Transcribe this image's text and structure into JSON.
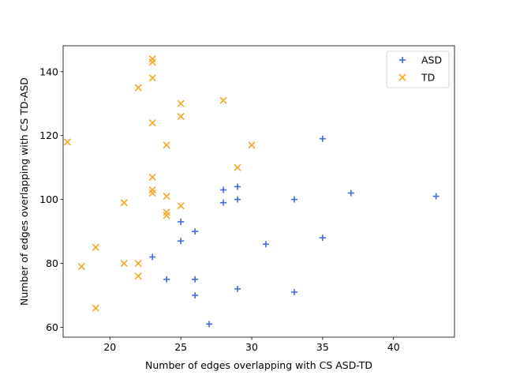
{
  "chart_data": {
    "type": "scatter",
    "xlabel": "Number of edges overlapping with CS ASD-TD",
    "ylabel": "Number of edges overlapping with CS TD-ASD",
    "xlim": [
      16.7,
      44.3
    ],
    "ylim": [
      56.9,
      148.1
    ],
    "xticks": [
      20,
      25,
      30,
      35,
      40
    ],
    "yticks": [
      60,
      80,
      100,
      120,
      140
    ],
    "grid": false,
    "legend_position": "top-right",
    "series": [
      {
        "name": "ASD",
        "marker": "plus",
        "color": "#4169e1",
        "points": [
          [
            23,
            82
          ],
          [
            24,
            75
          ],
          [
            25,
            93
          ],
          [
            25,
            87
          ],
          [
            26,
            90
          ],
          [
            26,
            75
          ],
          [
            26,
            70
          ],
          [
            27,
            61
          ],
          [
            28,
            103
          ],
          [
            28,
            99
          ],
          [
            29,
            104
          ],
          [
            29,
            100
          ],
          [
            29,
            72
          ],
          [
            31,
            86
          ],
          [
            33,
            100
          ],
          [
            33,
            71
          ],
          [
            35,
            119
          ],
          [
            35,
            88
          ],
          [
            37,
            102
          ],
          [
            43,
            101
          ]
        ]
      },
      {
        "name": "TD",
        "marker": "x",
        "color": "#f5a623",
        "points": [
          [
            17,
            118
          ],
          [
            18,
            79
          ],
          [
            19,
            85
          ],
          [
            19,
            66
          ],
          [
            21,
            99
          ],
          [
            21,
            80
          ],
          [
            22,
            135
          ],
          [
            22,
            80
          ],
          [
            22,
            76
          ],
          [
            23,
            144
          ],
          [
            23,
            143
          ],
          [
            23,
            138
          ],
          [
            23,
            124
          ],
          [
            23,
            107
          ],
          [
            23,
            103
          ],
          [
            23,
            102
          ],
          [
            24,
            117
          ],
          [
            24,
            101
          ],
          [
            24,
            96
          ],
          [
            24,
            95
          ],
          [
            25,
            130
          ],
          [
            25,
            126
          ],
          [
            25,
            98
          ],
          [
            28,
            131
          ],
          [
            29,
            110
          ],
          [
            30,
            117
          ]
        ]
      }
    ]
  }
}
